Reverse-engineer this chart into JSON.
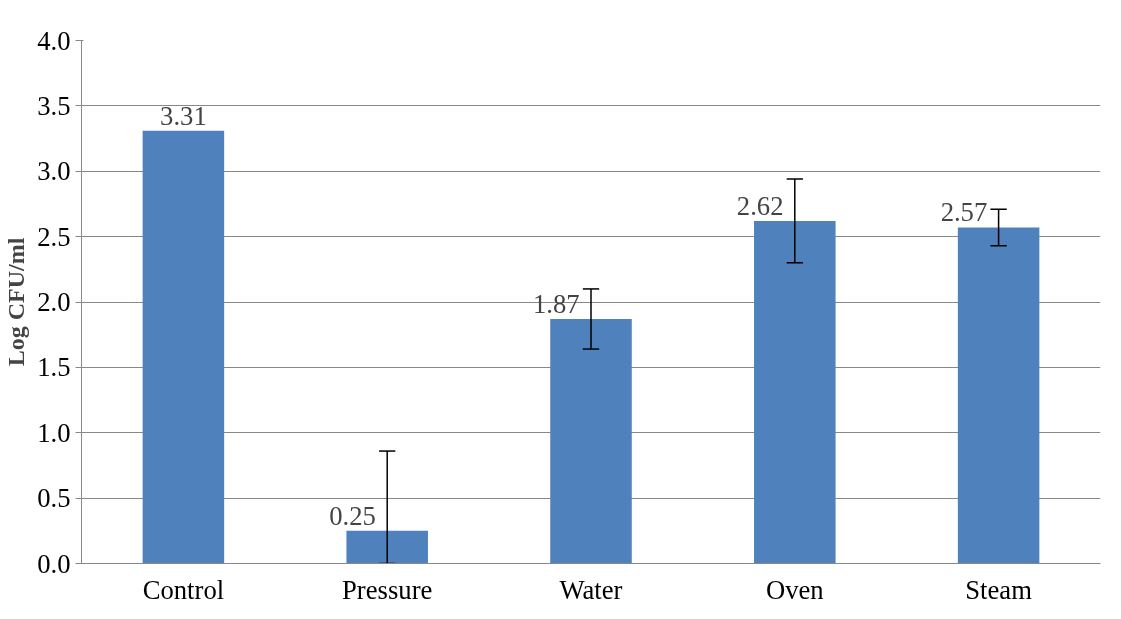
{
  "chart_data": {
    "type": "bar",
    "ylabel": "Log CFU/ml",
    "categories": [
      "Control",
      "Pressure",
      "Water",
      "Oven",
      "Steam"
    ],
    "values": [
      3.31,
      0.25,
      1.87,
      2.62,
      2.57
    ],
    "errors": [
      null,
      [
        0,
        0.86
      ],
      0.23,
      0.32,
      0.14
    ],
    "color": "#4f81bd",
    "ylim": [
      0,
      4
    ],
    "yticks": [
      {
        "value": 0,
        "label": "0.0"
      },
      {
        "value": 0.5,
        "label": "0.5"
      },
      {
        "value": 1,
        "label": "1.0"
      },
      {
        "value": 1.5,
        "label": "1.5"
      },
      {
        "value": 2,
        "label": "2.0"
      },
      {
        "value": 2.5,
        "label": "2.5"
      },
      {
        "value": 3,
        "label": "3.0"
      },
      {
        "value": 3.5,
        "label": "3.5"
      },
      {
        "value": 4,
        "label": "4.0"
      }
    ],
    "grid": "y",
    "data_labels": true
  }
}
